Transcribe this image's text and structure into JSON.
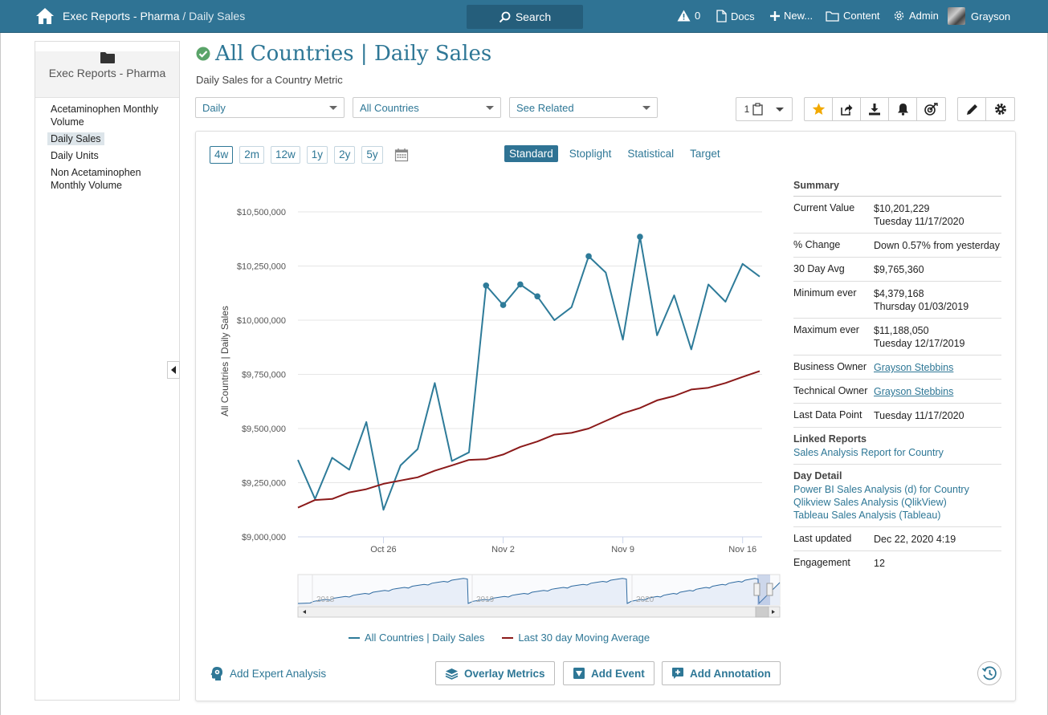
{
  "topbar": {
    "breadcrumb_root": "Exec Reports - Pharma",
    "breadcrumb_sep": "/",
    "breadcrumb_current": "Daily Sales",
    "search_label": "Search",
    "alert_count": "0",
    "docs_label": "Docs",
    "new_label": "New...",
    "content_label": "Content",
    "admin_label": "Admin",
    "user_name": "Grayson"
  },
  "sidebar": {
    "folder_label": "Exec Reports - Pharma",
    "items": [
      {
        "label": "Acetaminophen Monthly Volume"
      },
      {
        "label": "Daily Sales"
      },
      {
        "label": "Daily Units"
      },
      {
        "label": "Non Acetaminophen Monthly Volume"
      }
    ]
  },
  "page": {
    "title_main": "All Countries",
    "title_sep": "|",
    "title_metric": "Daily Sales",
    "subtitle": "Daily Sales for a Country Metric"
  },
  "filters": {
    "frequency": "Daily",
    "country": "All Countries",
    "related": "See Related",
    "pages_count": "1"
  },
  "ranges": [
    "4w",
    "2m",
    "12w",
    "1y",
    "2y",
    "5y"
  ],
  "views": [
    "Standard",
    "Stoplight",
    "Statistical",
    "Target"
  ],
  "chart_data": {
    "type": "line",
    "ylabel": "All Countries | Daily Sales",
    "ylim": [
      9000000,
      10500000
    ],
    "y_ticks": [
      "$9,000,000",
      "$9,250,000",
      "$9,500,000",
      "$9,750,000",
      "$10,000,000",
      "$10,250,000",
      "$10,500,000"
    ],
    "y_tick_values": [
      9000000,
      9250000,
      9500000,
      9750000,
      10000000,
      10250000,
      10500000
    ],
    "x_ticks": [
      "Oct 26",
      "Nov 2",
      "Nov 9",
      "Nov 16"
    ],
    "x_tick_index": [
      5,
      12,
      19,
      26
    ],
    "x": [
      "Oct 21",
      "Oct 22",
      "Oct 23",
      "Oct 24",
      "Oct 25",
      "Oct 26",
      "Oct 27",
      "Oct 28",
      "Oct 29",
      "Oct 30",
      "Oct 31",
      "Nov 1",
      "Nov 2",
      "Nov 3",
      "Nov 4",
      "Nov 5",
      "Nov 6",
      "Nov 7",
      "Nov 8",
      "Nov 9",
      "Nov 10",
      "Nov 11",
      "Nov 12",
      "Nov 13",
      "Nov 14",
      "Nov 15",
      "Nov 16",
      "Nov 17"
    ],
    "series": [
      {
        "name": "All Countries | Daily Sales",
        "color": "#2e7b99",
        "values": [
          9355000,
          9175000,
          9365000,
          9310000,
          9530000,
          9125000,
          9330000,
          9405000,
          9710000,
          9350000,
          9390000,
          10160000,
          10070000,
          10165000,
          10110000,
          10000000,
          10060000,
          10295000,
          10220000,
          9910000,
          10385000,
          9930000,
          10115000,
          9865000,
          10165000,
          10085000,
          10260000,
          10201229
        ],
        "marker_index": [
          11,
          12,
          13,
          14,
          17,
          20
        ]
      },
      {
        "name": "Last 30 day Moving Average",
        "color": "#8b1a1a",
        "values": [
          9135000,
          9170000,
          9175000,
          9205000,
          9220000,
          9245000,
          9260000,
          9275000,
          9305000,
          9330000,
          9355000,
          9358000,
          9380000,
          9415000,
          9440000,
          9472000,
          9480000,
          9500000,
          9535000,
          9570000,
          9595000,
          9630000,
          9650000,
          9680000,
          9688000,
          9710000,
          9738000,
          9765360
        ]
      }
    ],
    "navigator": {
      "year_labels": [
        "2018",
        "2019",
        "2020"
      ]
    }
  },
  "summary": {
    "title": "Summary",
    "current_value_label": "Current Value",
    "current_value": "$10,201,229",
    "current_value_date": "Tuesday 11/17/2020",
    "pct_change_label": "% Change",
    "pct_change": "Down 0.57% from yesterday",
    "avg_label": "30 Day Avg",
    "avg": "$9,765,360",
    "min_label": "Minimum ever",
    "min_value": "$4,379,168",
    "min_date": "Thursday 01/03/2019",
    "max_label": "Maximum ever",
    "max_value": "$11,188,050",
    "max_date": "Tuesday 12/17/2019",
    "business_owner_label": "Business Owner",
    "business_owner": "Grayson Stebbins",
    "technical_owner_label": "Technical Owner",
    "technical_owner": "Grayson Stebbins",
    "last_point_label": "Last Data Point",
    "last_point": "Tuesday 11/17/2020",
    "linked_label": "Linked Reports",
    "linked_reports": [
      "Sales Analysis Report for Country"
    ],
    "day_detail_label": "Day Detail",
    "day_detail": [
      "Power BI Sales Analysis (d) for Country",
      "Qlikview Sales Analysis (QlikView)",
      "Tableau Sales Analysis (Tableau)"
    ],
    "last_updated_label": "Last updated",
    "last_updated": "Dec 22, 2020 4:19",
    "engagement_label": "Engagement",
    "engagement": "12"
  },
  "actions": {
    "expert_label": "Add Expert Analysis",
    "overlay_label": "Overlay Metrics",
    "event_label": "Add Event",
    "annotation_label": "Add Annotation"
  },
  "colors": {
    "brand": "#2f7394",
    "link": "#2e7796",
    "series_main": "#2e7b99",
    "series_avg": "#8b1a1a",
    "favorite": "#f2a900",
    "success": "#5aa469"
  }
}
